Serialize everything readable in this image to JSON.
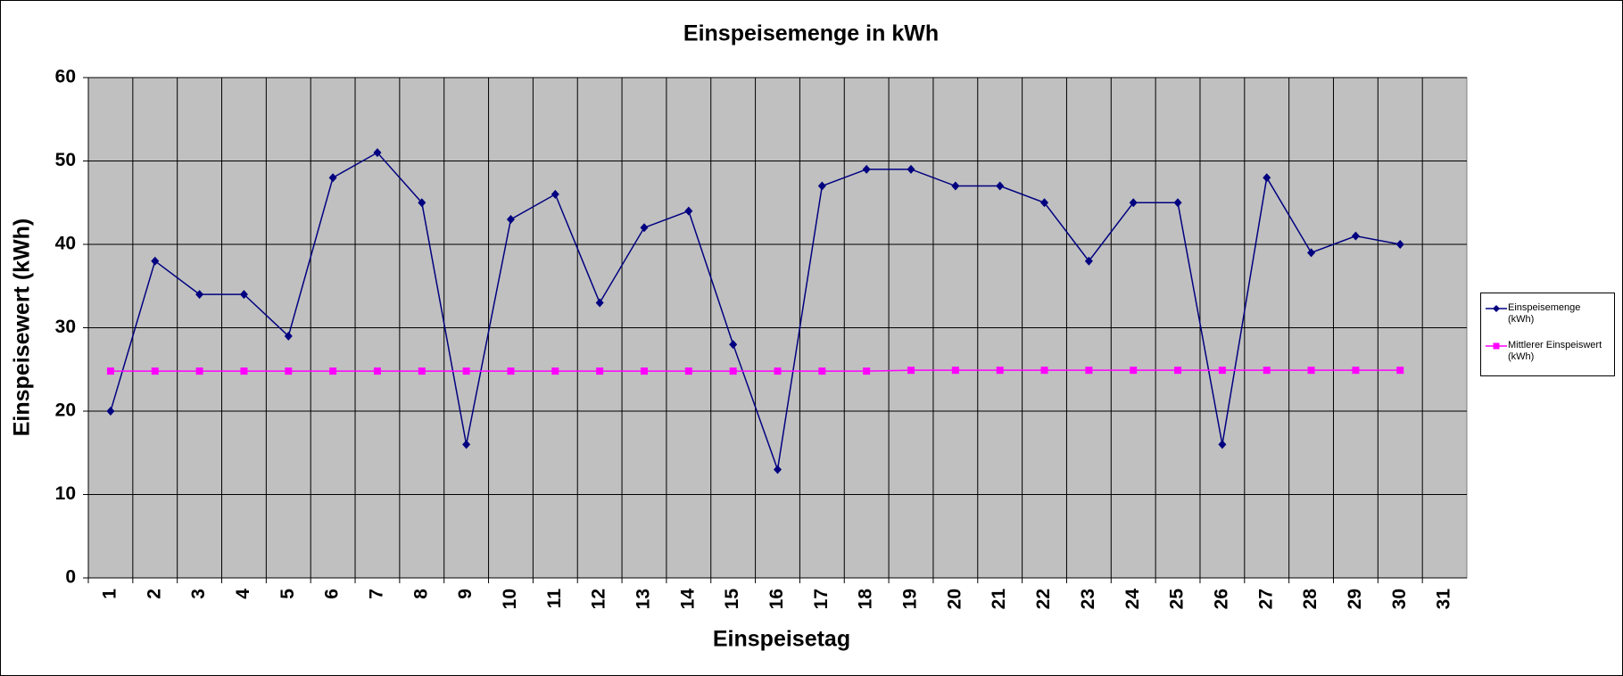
{
  "chart_data": {
    "type": "line",
    "title": "Einspeisemenge in kWh",
    "x_label": "Einspeisetag",
    "y_label": "Einspeisewert  (kWh)",
    "categories": [
      "1",
      "2",
      "3",
      "4",
      "5",
      "6",
      "7",
      "8",
      "9",
      "10",
      "11",
      "12",
      "13",
      "14",
      "15",
      "16",
      "17",
      "18",
      "19",
      "20",
      "21",
      "22",
      "23",
      "24",
      "25",
      "26",
      "27",
      "28",
      "29",
      "30",
      "31"
    ],
    "series": [
      {
        "name": "Einspeisemenge (kWh)",
        "color": "#000080",
        "marker": "diamond",
        "values": [
          20,
          38,
          34,
          34,
          29,
          48,
          51,
          45,
          16,
          43,
          46,
          33,
          42,
          44,
          28,
          13,
          47,
          49,
          49,
          47,
          47,
          45,
          38,
          45,
          45,
          16,
          48,
          39,
          41,
          40,
          null
        ]
      },
      {
        "name": "Mittlerer Einspeiswert (kWh)",
        "color": "#ff00ff",
        "marker": "square",
        "values": [
          24.8,
          24.8,
          24.8,
          24.8,
          24.8,
          24.8,
          24.8,
          24.8,
          24.8,
          24.8,
          24.8,
          24.8,
          24.8,
          24.8,
          24.8,
          24.8,
          24.8,
          24.8,
          24.9,
          24.9,
          24.9,
          24.9,
          24.9,
          24.9,
          24.9,
          24.9,
          24.9,
          24.9,
          24.9,
          24.9,
          null
        ]
      }
    ],
    "ylim": [
      0,
      60
    ],
    "yticks": [
      0,
      10,
      20,
      30,
      40,
      50,
      60
    ],
    "grid": true,
    "legend": "right",
    "plot_background": "#c0c0c0"
  }
}
